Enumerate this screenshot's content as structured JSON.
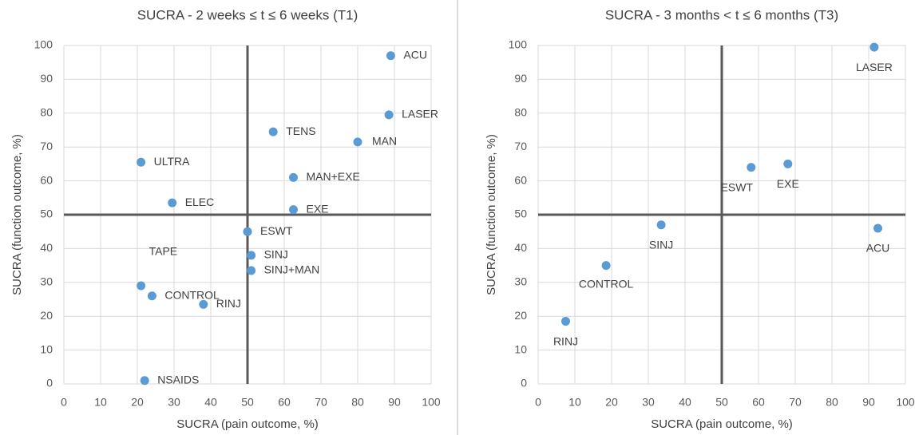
{
  "chart_data": [
    {
      "type": "scatter",
      "title": "SUCRA - 2 weeks ≤ t ≤ 6 weeks (T1)",
      "xlabel": "SUCRA (pain outcome, %)",
      "ylabel": "SUCRA (function outcome, %)",
      "point_labels": [
        "ACU",
        "LASER",
        "TENS",
        "MAN",
        "ULTRA",
        "MAN+EXE",
        "ELEC",
        "EXE",
        "ESWT",
        "SINJ",
        "SINJ+MAN",
        "TAPE",
        "CONTROL",
        "RINJ",
        "NSAIDS"
      ],
      "x": [
        89,
        88.5,
        57,
        80,
        21,
        62.5,
        29.5,
        62.5,
        50,
        51,
        51,
        21,
        24,
        38,
        22
      ],
      "values": [
        97,
        79.5,
        74.5,
        71.5,
        65.5,
        61,
        53.5,
        51.5,
        45,
        38,
        33.5,
        29,
        26,
        23.5,
        1
      ],
      "color": "#5b9bd5",
      "xlim": [
        0,
        100
      ],
      "ylim": [
        0,
        100
      ],
      "xticks": [
        0,
        10,
        20,
        30,
        40,
        50,
        60,
        70,
        80,
        90,
        100
      ],
      "yticks": [
        0,
        10,
        20,
        30,
        40,
        50,
        60,
        70,
        80,
        90,
        100
      ],
      "grid": true,
      "quadrant_lines": [
        50,
        50
      ]
    },
    {
      "type": "scatter",
      "title": "SUCRA - 3 months < t ≤ 6 months (T3)",
      "xlabel": "SUCRA (pain outcome, %)",
      "ylabel": "SUCRA (function outcome, %)",
      "point_labels": [
        "LASER",
        "ESWT",
        "EXE",
        "SINJ",
        "ACU",
        "CONTROL",
        "RINJ"
      ],
      "x": [
        91.5,
        58,
        68,
        33.5,
        92.5,
        18.5,
        7.5
      ],
      "values": [
        99.5,
        64,
        65,
        47,
        46,
        35,
        18.5
      ],
      "color": "#5b9bd5",
      "xlim": [
        0,
        100
      ],
      "ylim": [
        0,
        100
      ],
      "xticks": [
        0,
        10,
        20,
        30,
        40,
        50,
        60,
        70,
        80,
        90,
        100
      ],
      "yticks": [
        0,
        10,
        20,
        30,
        40,
        50,
        60,
        70,
        80,
        90,
        100
      ],
      "grid": true,
      "quadrant_lines": [
        50,
        50
      ]
    }
  ]
}
